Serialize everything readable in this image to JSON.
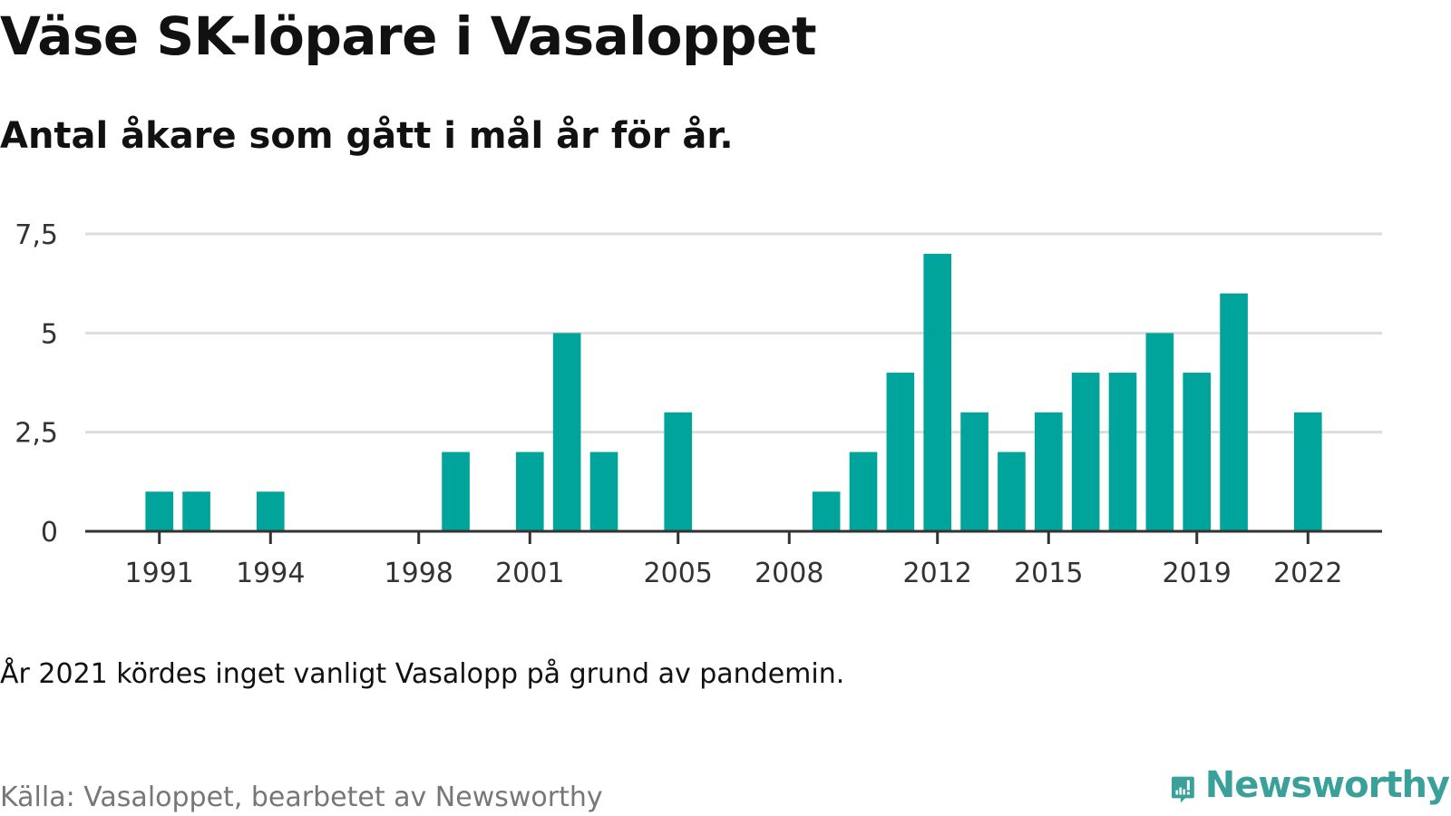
{
  "title": "Väse SK-löpare i Vasaloppet",
  "subtitle": "Antal åkare som gått i mål år för år.",
  "note": "År 2021 kördes inget vanligt Vasalopp på grund av pandemin.",
  "source": "Källa: Vasaloppet, bearbetet av Newsworthy",
  "brand": {
    "name": "Newsworthy",
    "icon": "newsworthy-logo-icon",
    "color": "#3aa19a"
  },
  "chart_data": {
    "type": "bar",
    "title": "",
    "xlabel": "",
    "ylabel": "",
    "color": "#00a49b",
    "grid": true,
    "ylim": [
      0,
      7.5
    ],
    "yticks": [
      0,
      2.5,
      5,
      7.5
    ],
    "ytick_labels": [
      "0",
      "2,5",
      "5",
      "7,5"
    ],
    "xlim": [
      1989,
      2024
    ],
    "xtick_labels": [
      "1991",
      "1994",
      "1998",
      "2001",
      "2005",
      "2008",
      "2012",
      "2015",
      "2019",
      "2022"
    ],
    "x": [
      1991,
      1992,
      1994,
      1999,
      2001,
      2002,
      2003,
      2005,
      2009,
      2010,
      2011,
      2012,
      2013,
      2014,
      2015,
      2016,
      2017,
      2018,
      2019,
      2020,
      2022
    ],
    "values": [
      1,
      1,
      1,
      2,
      2,
      5,
      2,
      3,
      1,
      2,
      4,
      7,
      3,
      2,
      3,
      4,
      4,
      5,
      4,
      6,
      3
    ]
  }
}
